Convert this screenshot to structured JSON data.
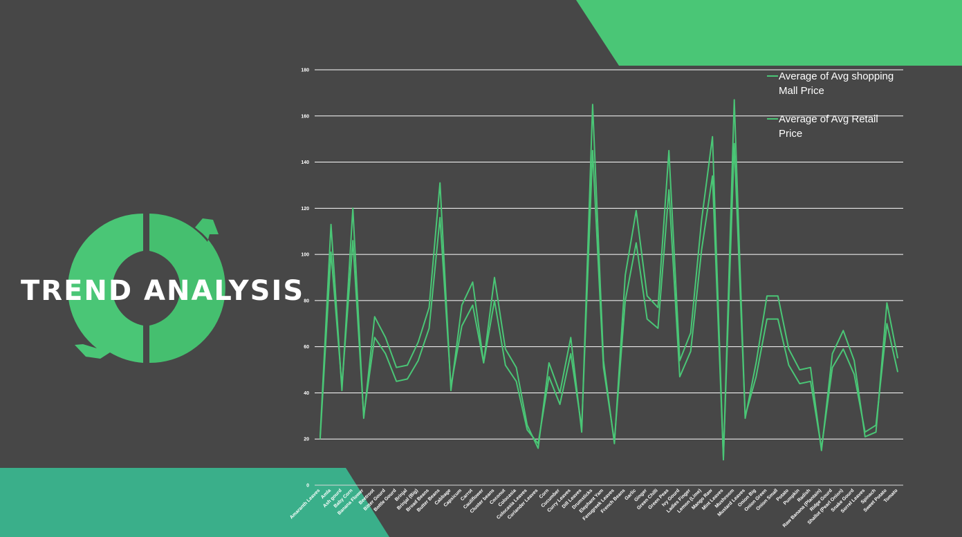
{
  "slide": {
    "title": "TREND ANALYSIS",
    "colors": {
      "background": "#474747",
      "accent": "#4ac676",
      "accent_dark": "#3aaf8a",
      "text": "#ffffff"
    },
    "decor_icon": "circular-refresh-arrows-icon"
  },
  "chart_data": {
    "type": "line",
    "title": "",
    "xlabel": "",
    "ylabel": "",
    "ylim": [
      0,
      180
    ],
    "yticks": [
      0,
      20,
      40,
      60,
      80,
      100,
      120,
      140,
      160,
      180
    ],
    "grid": true,
    "legend_position": "top-right",
    "legend": [
      {
        "lines": [
          "Average of Avg shopping",
          "Mall Price"
        ]
      },
      {
        "lines": [
          "Average of Avg Retail",
          "Price"
        ]
      }
    ],
    "categories": [
      "Amaranth Leaves",
      "Amla",
      "Ash gourd",
      "Baby Corn",
      "Banana Flower",
      "Beetroot",
      "Bitter Gourd",
      "Bottle Gourd",
      "Brinjal",
      "Brinjal (Big)",
      "Broad Beans",
      "Butter Beans",
      "Cabbage",
      "Capsicum",
      "Carrot",
      "Cauliflower",
      "Cluster beans",
      "Coconut",
      "Colocasia",
      "Colocasia Leaves",
      "Coriander Leaves",
      "Corn",
      "Cucumber",
      "Curry Leaves",
      "Dill Leaves",
      "Drumsticks",
      "Elephant Yam",
      "Fenugreek Leaves",
      "French Beans",
      "Garlic",
      "Ginger",
      "Green Chilli",
      "Green Peas",
      "Ivy Gourd",
      "Ladies Finger",
      "Lemon (Lime)",
      "Mango Raw",
      "Mint Leaves",
      "Mushroom",
      "Mustard Leaves",
      "Onion Big",
      "Onion Green",
      "Onion Small",
      "Potato",
      "Pumpkin",
      "Radish",
      "Raw Banana (Plantain)",
      "Ridge Gourd",
      "Shallot (Pearl Onion)",
      "Snake Gourd",
      "Sorrel Leaves",
      "Spinach",
      "Sweet Potato",
      "Tomato"
    ],
    "series": [
      {
        "name": "Average of Avg shopping Mall Price",
        "color": "#4ac676",
        "values": [
          21,
          113,
          41,
          120,
          29,
          73,
          64,
          51,
          52,
          62,
          77,
          131,
          41,
          78,
          88,
          53,
          90,
          59,
          51,
          26,
          16,
          53,
          40,
          64,
          23,
          165,
          54,
          18,
          91,
          119,
          82,
          77,
          145,
          54,
          66,
          115,
          151,
          11,
          167,
          29,
          53,
          82,
          82,
          59,
          50,
          51,
          15,
          57,
          67,
          54,
          21,
          23,
          79,
          55
        ]
      },
      {
        "name": "Average of Avg Retail Price",
        "color": "#4ac676",
        "values": [
          20,
          101,
          43,
          106,
          30,
          64,
          57,
          45,
          46,
          54,
          68,
          116,
          43,
          69,
          78,
          53,
          80,
          52,
          45,
          24,
          18,
          47,
          35,
          57,
          25,
          145,
          51,
          19,
          80,
          105,
          72,
          68,
          128,
          47,
          58,
          102,
          134,
          12,
          148,
          30,
          47,
          72,
          72,
          52,
          44,
          45,
          16,
          51,
          59,
          48,
          23,
          26,
          70,
          49
        ]
      }
    ]
  }
}
